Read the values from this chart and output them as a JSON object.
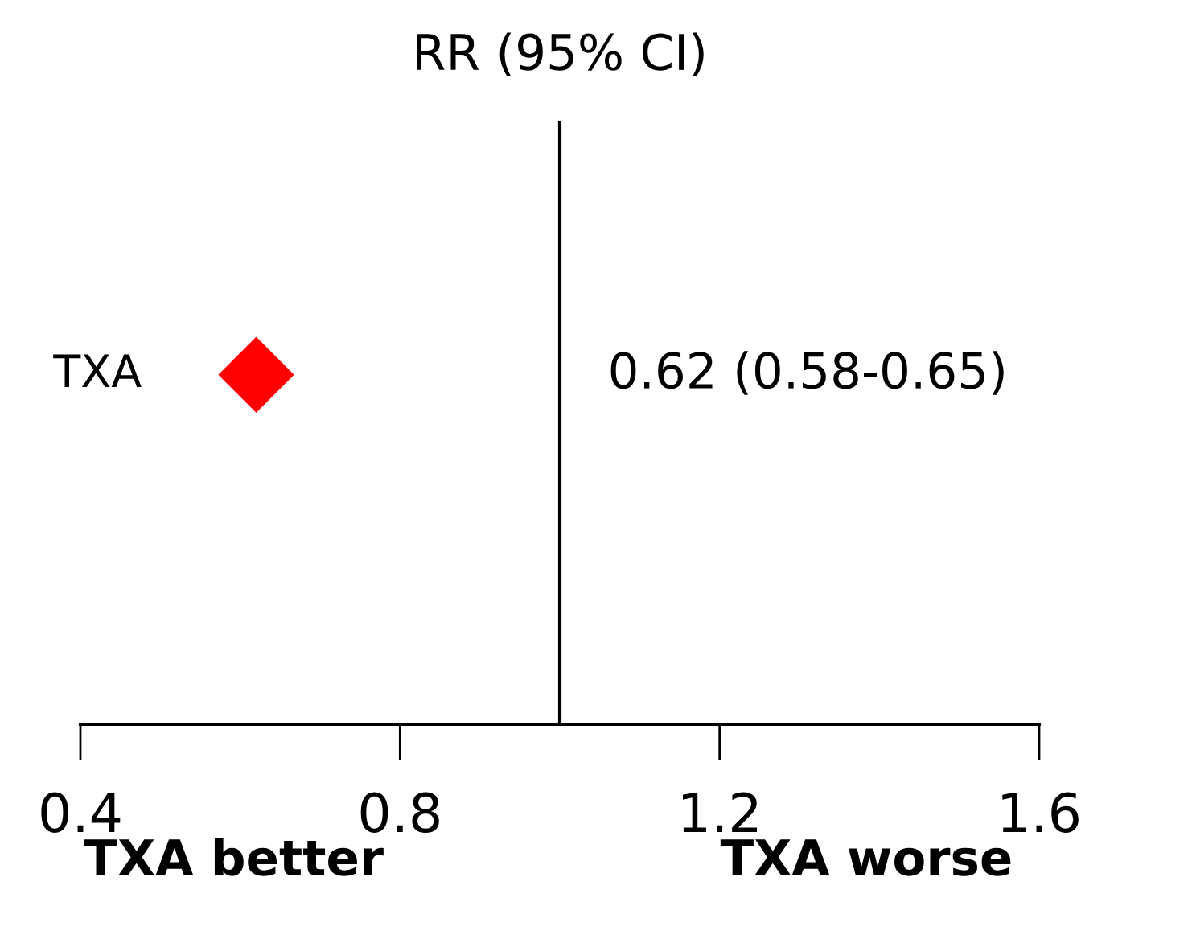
{
  "chart_data": {
    "type": "scatter",
    "orientation": "horizontal",
    "title": "RR (95% CI)",
    "categories": [
      "TXA"
    ],
    "series": [
      {
        "color": "#ff0000",
        "values": [
          0.62
        ]
      }
    ],
    "marker": "diamond",
    "xlim": [
      0.4,
      1.6
    ],
    "xticks": [
      0.4,
      0.8,
      1.2,
      1.6
    ],
    "ref_lines": [
      {
        "axis": "x",
        "value": 1.0,
        "color": "#000000"
      }
    ],
    "annotations": [
      "0.62 (0.58-0.65)",
      "TXA better",
      "TXA worse"
    ],
    "tick_labels": "x",
    "grid": false,
    "legend": false
  }
}
